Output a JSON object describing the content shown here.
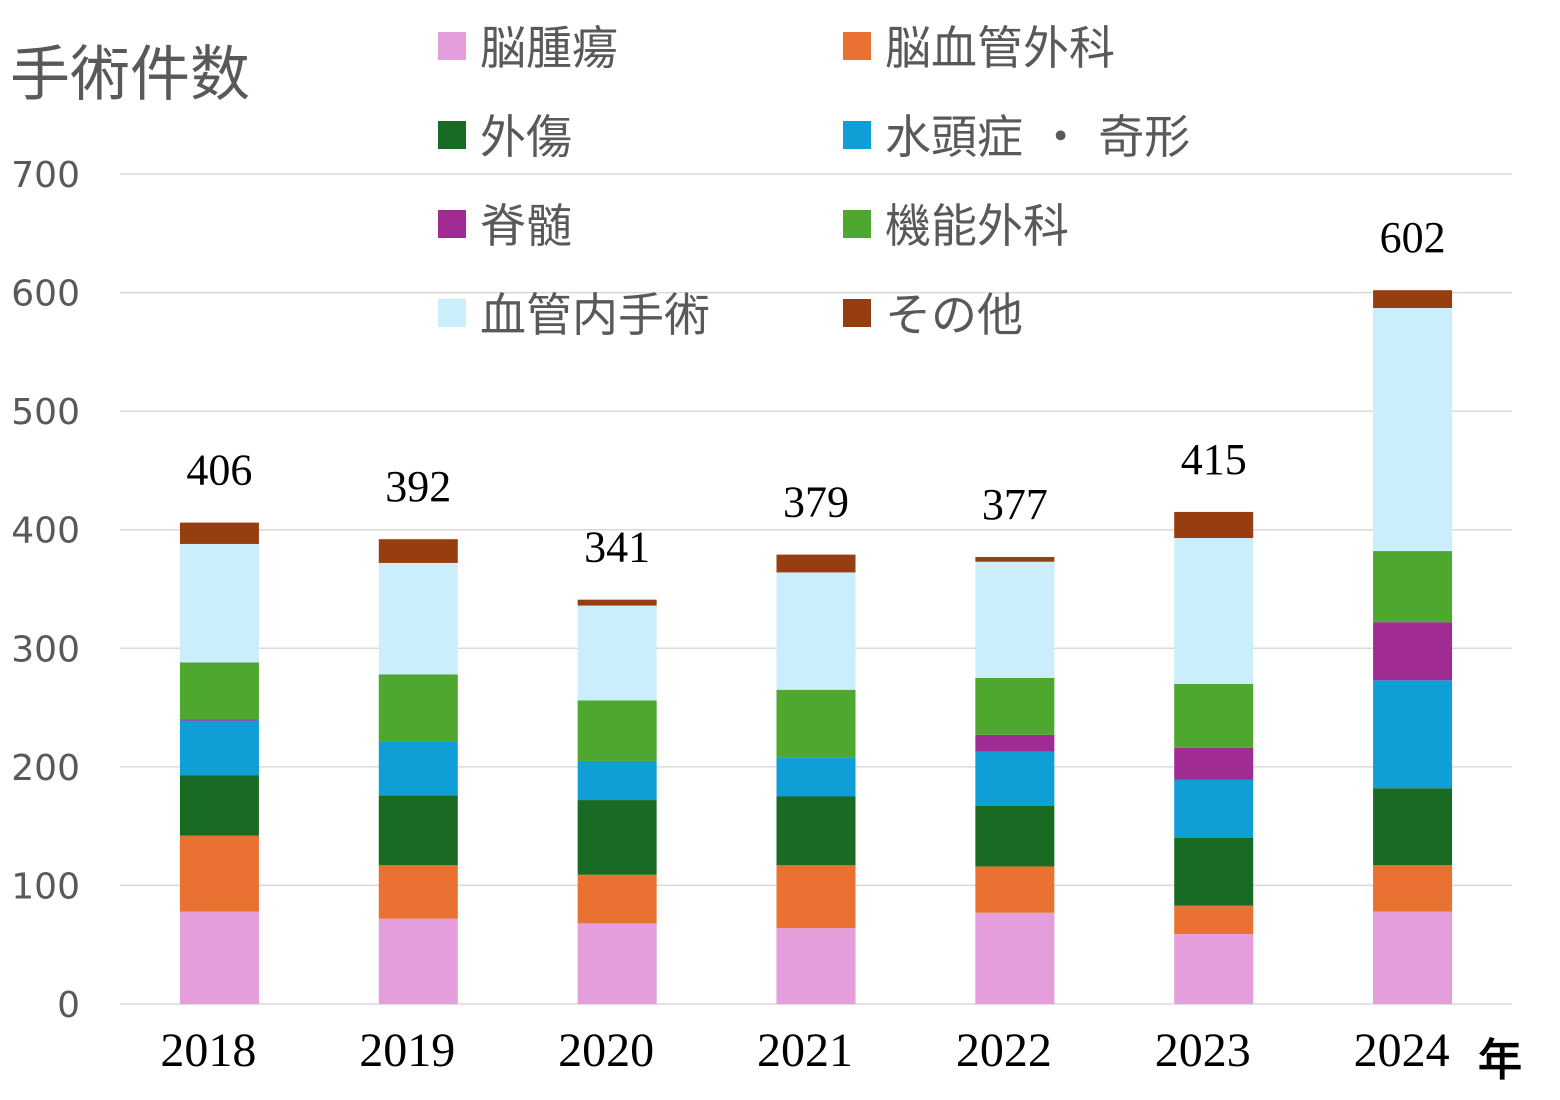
{
  "chart_data": {
    "type": "bar",
    "stacked": true,
    "title": "手術件数",
    "xlabel": "年",
    "ylabel": "",
    "ylim": [
      0,
      700
    ],
    "yticks": [
      0,
      100,
      200,
      300,
      400,
      500,
      600,
      700
    ],
    "grid": true,
    "legend_position": "top",
    "categories": [
      "2018",
      "2019",
      "2020",
      "2021",
      "2022",
      "2023",
      "2024"
    ],
    "totals": [
      406,
      392,
      341,
      379,
      377,
      415,
      602
    ],
    "series": [
      {
        "name": "脳腫瘍",
        "color": "#e49edc",
        "values": [
          78,
          72,
          68,
          64,
          77,
          59,
          78
        ]
      },
      {
        "name": "脳血管外科",
        "color": "#e97132",
        "values": [
          64,
          45,
          41,
          53,
          39,
          24,
          39
        ]
      },
      {
        "name": "外傷",
        "color": "#196b24",
        "values": [
          51,
          59,
          63,
          58,
          51,
          57,
          65
        ]
      },
      {
        "name": "水頭症・奇形",
        "color": "#0f9ed5",
        "values": [
          46,
          45,
          33,
          33,
          46,
          49,
          91
        ]
      },
      {
        "name": "脊髄",
        "color": "#a02b93",
        "values": [
          1,
          0,
          0,
          0,
          14,
          27,
          49
        ]
      },
      {
        "name": "機能外科",
        "color": "#4ea72e",
        "values": [
          48,
          57,
          51,
          57,
          48,
          54,
          60
        ]
      },
      {
        "name": "血管内手術",
        "color": "#caeefb",
        "values": [
          100,
          94,
          80,
          99,
          98,
          123,
          205
        ]
      },
      {
        "name": "その他",
        "color": "#973e10",
        "values": [
          18,
          20,
          5,
          15,
          4,
          22,
          15
        ]
      }
    ],
    "legend_display": [
      "脳腫瘍",
      "脳血管外科",
      "外傷",
      "水頭症 ・ 奇形",
      "脊髄",
      "機能外科",
      "血管内手術",
      "その他"
    ]
  }
}
